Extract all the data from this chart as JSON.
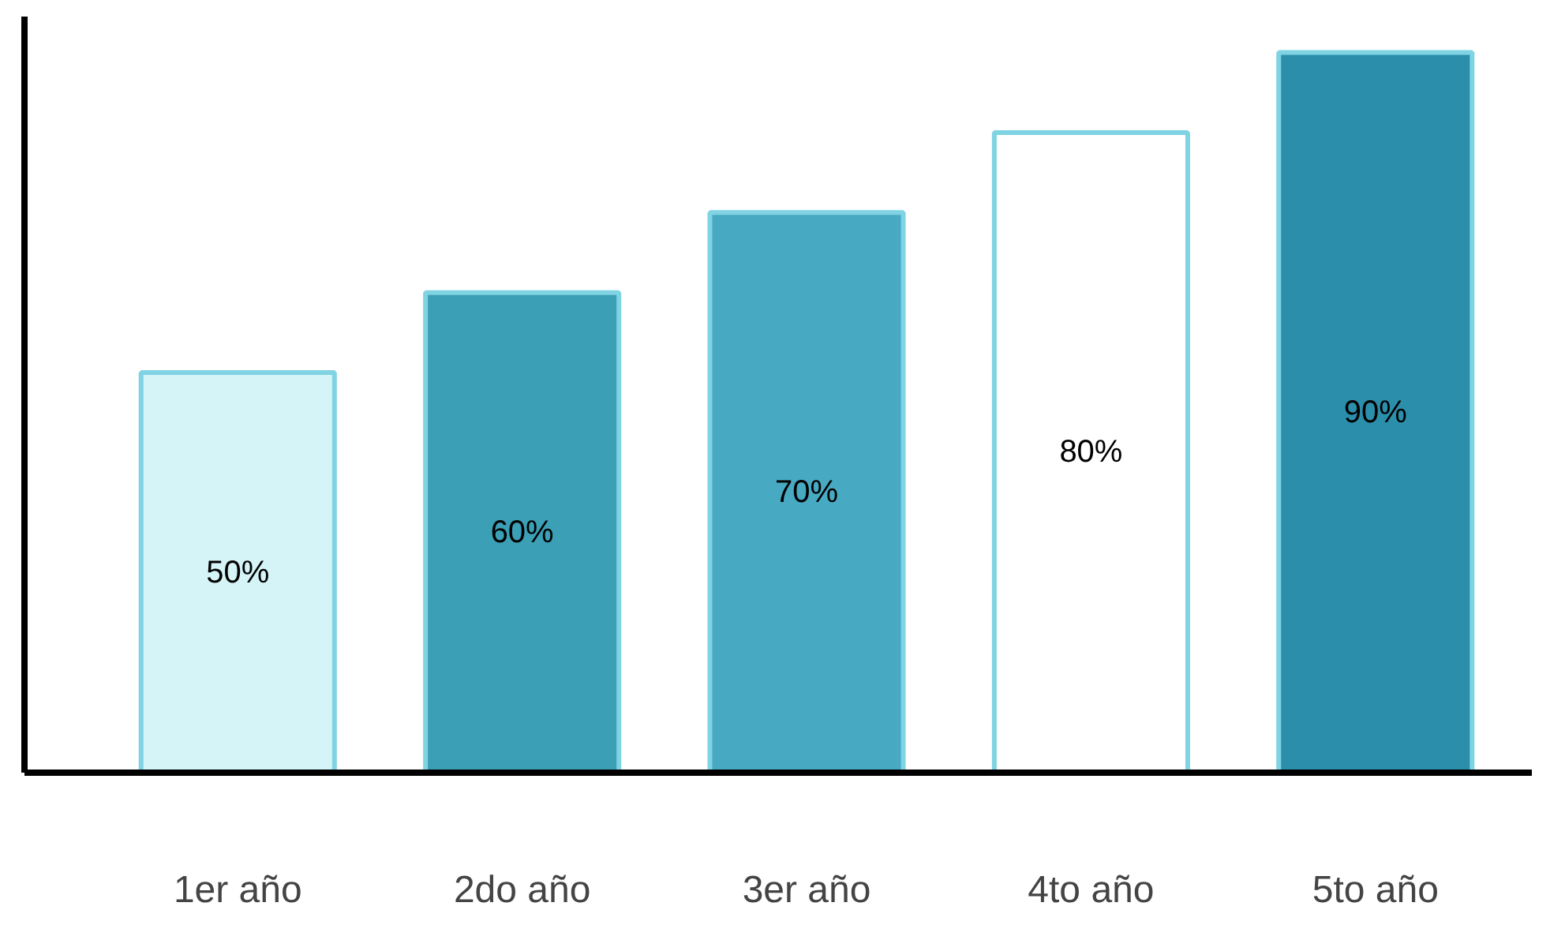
{
  "chart_data": {
    "type": "bar",
    "categories": [
      "1er año",
      "2do año",
      "3er año",
      "4to año",
      "5to año"
    ],
    "values": [
      50,
      60,
      70,
      80,
      90
    ],
    "colors": [
      "#d4f4f8",
      "#3b9fb6",
      "#48a9c2",
      "#ffffff",
      "#2b8fab"
    ],
    "value_labels": [
      "50%",
      "60%",
      "70%",
      "80%",
      "90%"
    ],
    "grid": false,
    "tick_labels": "x"
  }
}
